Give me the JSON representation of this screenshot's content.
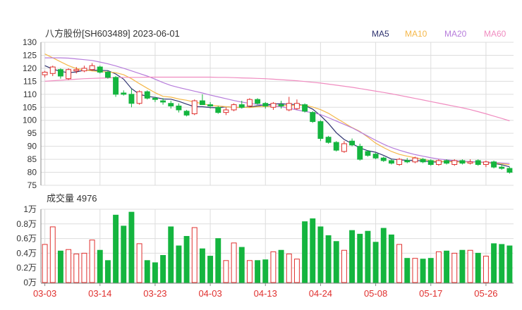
{
  "header": {
    "title": "八方股份[SH603489] 2023-06-01"
  },
  "legend": [
    {
      "name": "MA5",
      "color": "#2f3370"
    },
    {
      "name": "MA10",
      "color": "#f5b84a"
    },
    {
      "name": "MA20",
      "color": "#b77ddb"
    },
    {
      "name": "MA60",
      "color": "#f08cc0"
    }
  ],
  "colors": {
    "up": "#e0302e",
    "down": "#14b53f",
    "grid": "#dddddd",
    "axis": "#888888",
    "date_label": "#e0302e"
  },
  "volume_panel": {
    "label": "成交量 4976"
  },
  "chart_data": [
    {
      "type": "candlestick",
      "title": "八方股份[SH603489] 2023-06-01",
      "ylim": [
        75,
        130
      ],
      "y_ticks": [
        "130",
        "125",
        "120",
        "115",
        "110",
        "105",
        "100",
        "95",
        "90",
        "85",
        "80",
        "75"
      ],
      "x_tick_labels": [
        "03-03",
        "03-14",
        "03-23",
        "04-03",
        "04-13",
        "04-24",
        "05-08",
        "05-17",
        "05-26"
      ],
      "x_tick_indices": [
        0,
        7,
        14,
        21,
        28,
        35,
        42,
        49,
        56
      ],
      "ohlc": [
        [
          117.5,
          119.0,
          116.5,
          118.5
        ],
        [
          118.0,
          121.0,
          117.0,
          120.5
        ],
        [
          119.5,
          120.0,
          116.0,
          117.0
        ],
        [
          116.0,
          120.0,
          115.5,
          119.5
        ],
        [
          119.0,
          120.5,
          118.0,
          119.5
        ],
        [
          119.0,
          121.0,
          118.5,
          120.0
        ],
        [
          119.5,
          122.0,
          119.0,
          121.0
        ],
        [
          120.5,
          121.0,
          118.0,
          118.5
        ],
        [
          118.5,
          119.0,
          116.0,
          116.5
        ],
        [
          116.5,
          117.0,
          109.0,
          110.0
        ],
        [
          110.5,
          111.5,
          109.5,
          110.0
        ],
        [
          110.0,
          112.0,
          105.0,
          106.5
        ],
        [
          106.5,
          111.5,
          106.0,
          111.0
        ],
        [
          111.0,
          111.5,
          108.0,
          108.5
        ],
        [
          108.5,
          109.0,
          107.0,
          108.0
        ],
        [
          107.5,
          108.5,
          106.0,
          107.0
        ],
        [
          106.5,
          107.5,
          104.5,
          105.5
        ],
        [
          105.5,
          106.5,
          103.0,
          104.0
        ],
        [
          103.5,
          104.0,
          101.5,
          102.0
        ],
        [
          102.5,
          108.0,
          102.0,
          107.5
        ],
        [
          107.5,
          110.0,
          106.0,
          106.0
        ],
        [
          106.0,
          107.0,
          104.5,
          105.5
        ],
        [
          105.0,
          105.5,
          102.5,
          103.0
        ],
        [
          103.0,
          105.0,
          102.0,
          104.0
        ],
        [
          104.0,
          106.5,
          103.5,
          106.0
        ],
        [
          106.0,
          107.5,
          104.5,
          105.0
        ],
        [
          105.5,
          108.5,
          105.0,
          108.0
        ],
        [
          108.0,
          108.5,
          106.0,
          106.5
        ],
        [
          106.5,
          107.0,
          104.5,
          105.5
        ],
        [
          105.0,
          107.0,
          104.0,
          106.5
        ],
        [
          106.0,
          107.5,
          104.5,
          105.5
        ],
        [
          104.0,
          109.0,
          103.5,
          106.5
        ],
        [
          104.5,
          108.0,
          104.0,
          106.5
        ],
        [
          106.0,
          106.5,
          103.0,
          103.5
        ],
        [
          103.0,
          103.5,
          99.0,
          99.5
        ],
        [
          99.5,
          100.0,
          92.0,
          93.0
        ],
        [
          93.5,
          94.0,
          91.0,
          91.5
        ],
        [
          91.5,
          92.0,
          88.0,
          88.5
        ],
        [
          88.0,
          92.0,
          87.5,
          91.0
        ],
        [
          92.0,
          93.0,
          90.0,
          90.5
        ],
        [
          90.0,
          91.0,
          84.5,
          85.0
        ],
        [
          88.0,
          88.5,
          86.0,
          86.5
        ],
        [
          87.0,
          87.5,
          85.0,
          85.5
        ],
        [
          85.5,
          86.0,
          84.0,
          84.5
        ],
        [
          84.5,
          85.0,
          83.0,
          83.5
        ],
        [
          83.0,
          85.5,
          82.5,
          85.0
        ],
        [
          84.5,
          85.5,
          83.5,
          84.0
        ],
        [
          84.0,
          86.0,
          83.5,
          85.5
        ],
        [
          85.0,
          85.5,
          83.5,
          84.0
        ],
        [
          84.5,
          85.0,
          82.5,
          83.0
        ],
        [
          83.0,
          85.0,
          82.5,
          84.5
        ],
        [
          84.5,
          85.0,
          83.0,
          83.5
        ],
        [
          83.0,
          85.0,
          82.5,
          84.5
        ],
        [
          84.5,
          85.0,
          83.0,
          83.5
        ],
        [
          83.5,
          85.0,
          83.0,
          84.0
        ],
        [
          84.5,
          85.0,
          82.5,
          83.0
        ],
        [
          83.0,
          84.5,
          82.0,
          84.0
        ],
        [
          84.0,
          84.5,
          81.5,
          82.0
        ],
        [
          82.0,
          83.0,
          81.0,
          81.5
        ],
        [
          81.5,
          82.0,
          79.5,
          80.0
        ]
      ],
      "volume_ylim": [
        0,
        10000
      ],
      "volume_y_ticks": [
        "1万",
        "0.8万",
        "0.6万",
        "0.4万",
        "0.2万",
        "0万"
      ],
      "volume": [
        5200,
        7600,
        4300,
        4500,
        3900,
        4000,
        5800,
        4400,
        3000,
        9200,
        7700,
        9600,
        5300,
        3000,
        2700,
        3700,
        7600,
        5000,
        6300,
        7500,
        4600,
        3600,
        6000,
        3000,
        5400,
        4800,
        3000,
        3000,
        3100,
        4200,
        4400,
        3900,
        3200,
        8300,
        8700,
        7600,
        6400,
        5600,
        4400,
        7100,
        6600,
        7000,
        5500,
        7400,
        6500,
        5200,
        3300,
        3300,
        3200,
        3300,
        4200,
        4300,
        4000,
        4400,
        4400,
        4000,
        3600,
        5300,
        5200,
        5000
      ],
      "ma5": [
        121.0,
        119.7,
        118.8,
        118.3,
        118.6,
        119.3,
        119.3,
        119.2,
        119.1,
        117.8,
        115.8,
        112.2,
        110.0,
        109.2,
        108.8,
        108.2,
        108.1,
        107.3,
        106.2,
        105.2,
        105.2,
        104.9,
        104.8,
        105.2,
        105.0,
        104.9,
        105.1,
        105.6,
        105.9,
        106.2,
        106.4,
        106.1,
        106.1,
        105.7,
        104.3,
        101.8,
        98.8,
        95.2,
        92.6,
        91.0,
        89.4,
        88.3,
        87.7,
        86.5,
        85.1,
        84.8,
        84.6,
        84.5,
        84.4,
        84.0,
        83.9,
        84.2,
        84.2,
        84.0,
        84.1,
        83.9,
        83.8,
        83.4,
        82.9,
        82.1
      ],
      "ma10": [
        125.5,
        124.0,
        122.5,
        121.0,
        119.9,
        119.4,
        119.0,
        118.7,
        118.6,
        118.3,
        117.5,
        116.0,
        114.1,
        112.3,
        110.6,
        109.2,
        108.9,
        108.2,
        107.7,
        107.0,
        106.4,
        105.7,
        105.5,
        105.2,
        104.9,
        105.0,
        104.9,
        105.2,
        105.3,
        105.4,
        105.6,
        105.7,
        105.7,
        105.8,
        105.1,
        104.1,
        102.7,
        100.8,
        99.0,
        97.2,
        95.7,
        93.5,
        91.2,
        89.5,
        88.0,
        86.9,
        86.2,
        85.6,
        85.0,
        84.4,
        84.2,
        84.1,
        84.0,
        84.0,
        84.0,
        83.9,
        83.7,
        83.6,
        83.3,
        82.9
      ],
      "ma20": [
        124.0,
        124.0,
        124.0,
        123.9,
        123.6,
        123.3,
        123.0,
        122.4,
        121.7,
        120.9,
        120.0,
        119.0,
        118.0,
        117.0,
        115.8,
        114.5,
        113.4,
        112.6,
        111.9,
        111.2,
        110.5,
        109.7,
        109.0,
        108.3,
        107.6,
        107.0,
        106.5,
        106.1,
        105.8,
        105.5,
        105.2,
        104.6,
        104.0,
        103.4,
        102.9,
        102.2,
        101.0,
        99.7,
        98.4,
        97.1,
        95.5,
        93.9,
        92.3,
        90.8,
        89.5,
        88.5,
        87.6,
        86.8,
        86.2,
        85.6,
        85.1,
        84.8,
        84.5,
        84.3,
        84.1,
        84.0,
        83.9,
        83.8,
        83.6,
        83.4
      ],
      "ma60": [
        115.0,
        115.2,
        115.4,
        115.6,
        115.8,
        116.0,
        116.1,
        116.2,
        116.3,
        116.4,
        116.5,
        116.5,
        116.5,
        116.6,
        116.6,
        116.6,
        116.6,
        116.6,
        116.6,
        116.6,
        116.6,
        116.6,
        116.5,
        116.5,
        116.4,
        116.3,
        116.2,
        116.1,
        116.0,
        115.8,
        115.6,
        115.4,
        115.2,
        114.9,
        114.6,
        114.3,
        113.9,
        113.5,
        113.1,
        112.7,
        112.2,
        111.7,
        111.2,
        110.7,
        110.2,
        109.6,
        109.0,
        108.4,
        107.8,
        107.2,
        106.6,
        106.0,
        105.4,
        104.8,
        104.1,
        103.3,
        102.5,
        101.6,
        100.7,
        99.8
      ]
    }
  ]
}
